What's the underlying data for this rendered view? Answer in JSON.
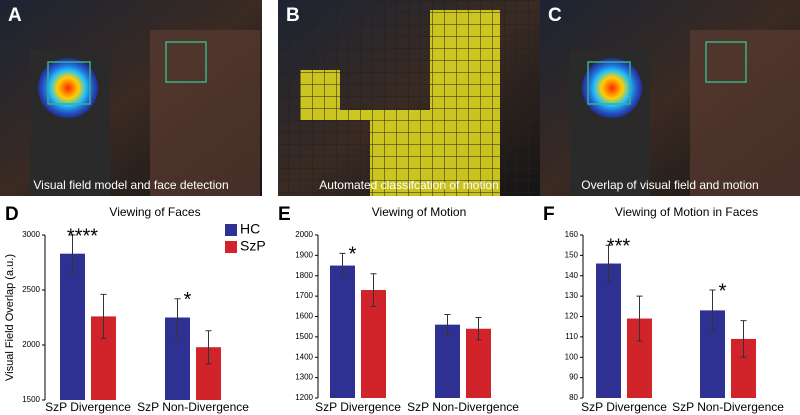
{
  "image_panels": [
    {
      "label": "A",
      "caption": "Visual field model and face detection"
    },
    {
      "label": "B",
      "caption": "Automated classifcation of motion"
    },
    {
      "label": "C",
      "caption": "Overlap of visual field and motion"
    }
  ],
  "chart_data": [
    {
      "type": "bar",
      "panel_label": "D",
      "title": "Viewing of Faces",
      "y_label": "Visual Field Overlap (a.u.)",
      "categories": [
        "SzP Divergence",
        "SzP Non-Divergence"
      ],
      "series": [
        {
          "name": "HC",
          "color": "#2e3192",
          "values": [
            2830,
            2250
          ],
          "errors": [
            170,
            170
          ]
        },
        {
          "name": "SzP",
          "color": "#d1232a",
          "values": [
            2260,
            1980
          ],
          "errors": [
            200,
            150
          ]
        }
      ],
      "significance": [
        "****",
        "*"
      ],
      "ylim": [
        1500,
        3000
      ],
      "yticks": [
        1500,
        2000,
        2500,
        3000
      ],
      "legend_position": "top-right"
    },
    {
      "type": "bar",
      "panel_label": "E",
      "title": "Viewing of Motion",
      "categories": [
        "SzP Divergence",
        "SzP Non-Divergence"
      ],
      "series": [
        {
          "name": "HC",
          "color": "#2e3192",
          "values": [
            1850,
            1560
          ],
          "errors": [
            60,
            50
          ]
        },
        {
          "name": "SzP",
          "color": "#d1232a",
          "values": [
            1730,
            1540
          ],
          "errors": [
            80,
            55
          ]
        }
      ],
      "significance": [
        "*",
        null
      ],
      "ylim": [
        1200,
        2000
      ],
      "yticks": [
        1200,
        1300,
        1400,
        1500,
        1600,
        1700,
        1800,
        1900,
        2000
      ]
    },
    {
      "type": "bar",
      "panel_label": "F",
      "title": "Viewing of Motion in Faces",
      "categories": [
        "SzP Divergence",
        "SzP Non-Divergence"
      ],
      "series": [
        {
          "name": "HC",
          "color": "#2e3192",
          "values": [
            146,
            123
          ],
          "errors": [
            9,
            10
          ]
        },
        {
          "name": "SzP",
          "color": "#d1232a",
          "values": [
            119,
            109
          ],
          "errors": [
            11,
            9
          ]
        }
      ],
      "significance": [
        "***",
        "*"
      ],
      "ylim": [
        80,
        160
      ],
      "yticks": [
        80,
        90,
        100,
        110,
        120,
        130,
        140,
        150,
        160
      ]
    }
  ]
}
